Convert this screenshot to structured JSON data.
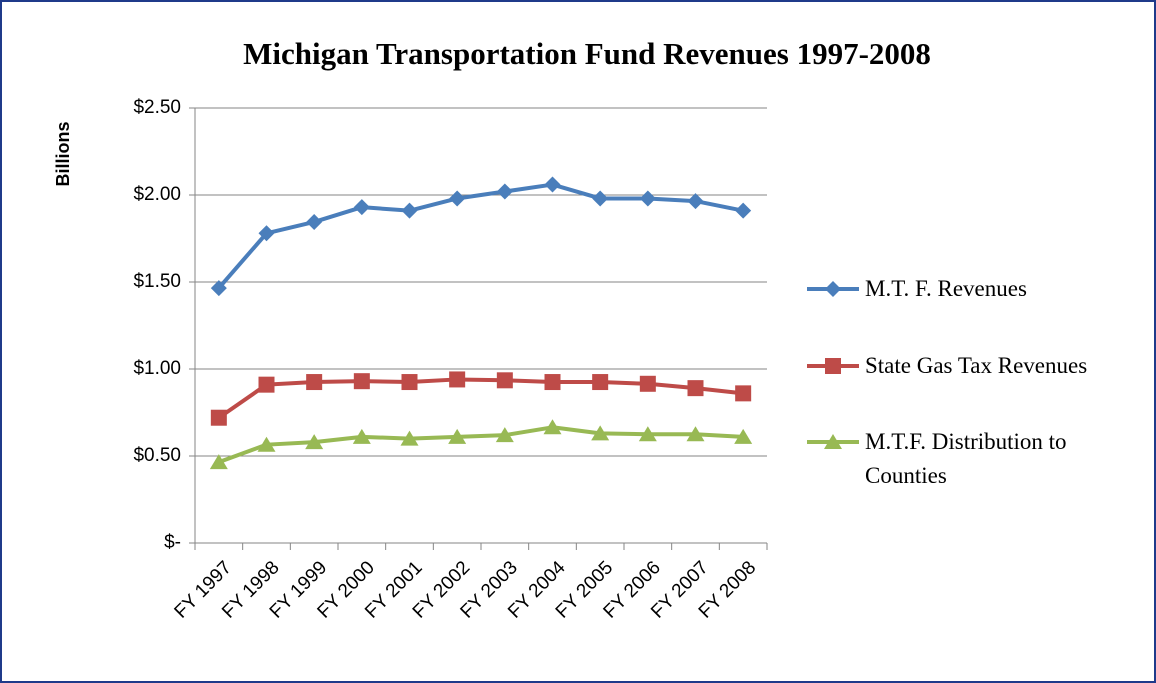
{
  "chart_data": {
    "type": "line",
    "title": "Michigan Transportation Fund Revenues 1997-2008",
    "y_label": "Billions",
    "categories": [
      "FY 1997",
      "FY 1998",
      "FY 1999",
      "FY 2000",
      "FY 2001",
      "FY 2002",
      "FY 2003",
      "FY 2004",
      "FY 2005",
      "FY 2006",
      "FY 2007",
      "FY 2008"
    ],
    "series": [
      {
        "name": "M.T. F. Revenues",
        "color": "#4a7ebb",
        "marker": "diamond",
        "values": [
          1.465,
          1.78,
          1.845,
          1.93,
          1.91,
          1.98,
          2.02,
          2.06,
          1.98,
          1.98,
          1.965,
          1.91
        ]
      },
      {
        "name": "State Gas Tax Revenues",
        "color": "#be4b48",
        "marker": "square",
        "values": [
          0.72,
          0.91,
          0.925,
          0.93,
          0.925,
          0.94,
          0.935,
          0.925,
          0.925,
          0.915,
          0.89,
          0.86
        ]
      },
      {
        "name": "M.T.F. Distribution to Counties",
        "color": "#98b954",
        "marker": "triangle",
        "values": [
          0.465,
          0.565,
          0.58,
          0.61,
          0.6,
          0.61,
          0.62,
          0.665,
          0.63,
          0.625,
          0.625,
          0.61
        ]
      }
    ],
    "ylim": [
      0,
      2.5
    ],
    "yticks": [
      {
        "value": 0,
        "label": "$-"
      },
      {
        "value": 0.5,
        "label": "$0.50"
      },
      {
        "value": 1,
        "label": "$1.00"
      },
      {
        "value": 1.5,
        "label": "$1.50"
      },
      {
        "value": 2,
        "label": "$2.00"
      },
      {
        "value": 2.5,
        "label": "$2.50"
      }
    ],
    "grid": true,
    "legend": "right"
  }
}
